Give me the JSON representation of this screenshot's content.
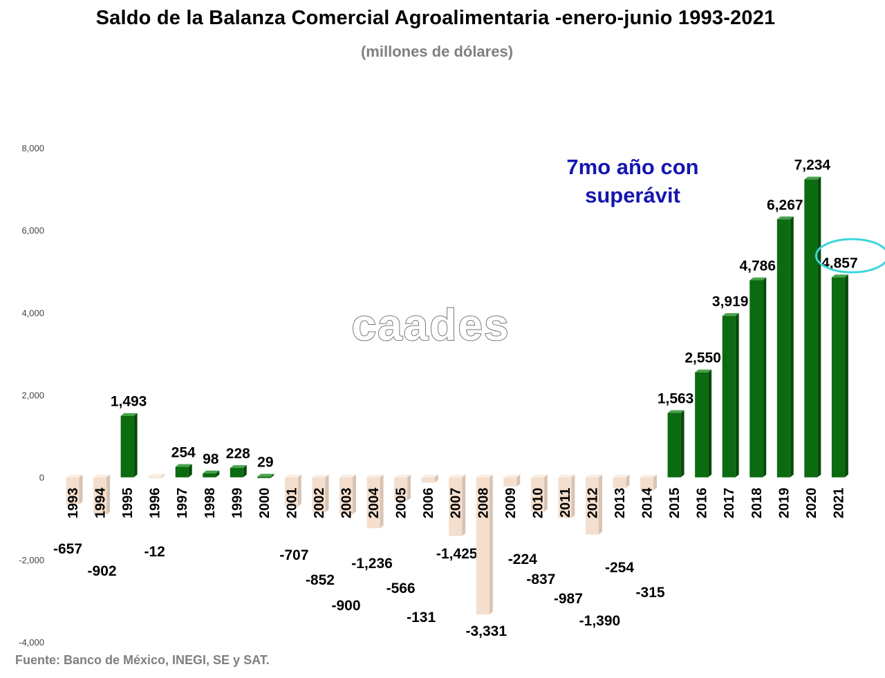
{
  "title": "Saldo de la Balanza Comercial Agroalimentaria -enero-junio 1993-2021",
  "subtitle": "(millones de dólares)",
  "source": "Fuente: Banco de México, INEGI, SE y SAT.",
  "watermark": "caades",
  "annotation": [
    "7mo año con",
    "superávit"
  ],
  "colors": {
    "positive": "#0b6b10",
    "negative": "#f4dfce",
    "annotation": "#1515b0",
    "highlight": "#3dd6dc"
  },
  "chart_data": {
    "type": "bar",
    "categories": [
      "1993",
      "1994",
      "1995",
      "1996",
      "1997",
      "1998",
      "1999",
      "2000",
      "2001",
      "2002",
      "2003",
      "2004",
      "2005",
      "2006",
      "2007",
      "2008",
      "2009",
      "2010",
      "2011",
      "2012",
      "2013",
      "2014",
      "2015",
      "2016",
      "2017",
      "2018",
      "2019",
      "2020",
      "2021"
    ],
    "values": [
      -657,
      -902,
      1493,
      -12,
      254,
      98,
      228,
      29,
      -707,
      -852,
      -900,
      -1236,
      -566,
      -131,
      -1425,
      -3331,
      -224,
      -837,
      -987,
      -1390,
      -254,
      -315,
      1563,
      2550,
      3919,
      4786,
      6267,
      7234,
      4857
    ],
    "data_labels": [
      "-657",
      "-902",
      "1,493",
      "-12",
      "254",
      "98",
      "228",
      "29",
      "-707",
      "-852",
      "-900",
      "-1,236",
      "-566",
      "-131",
      "-1,425",
      "-3,331",
      "-224",
      "-837",
      "-987",
      "-1,390",
      "-254",
      "-315",
      "1,563",
      "2,550",
      "3,919",
      "4,786",
      "6,267",
      "7,234",
      "4,857"
    ],
    "ylim": [
      -4000,
      8000
    ],
    "yticks": [
      -4000,
      -2000,
      0,
      2000,
      4000,
      6000,
      8000
    ],
    "ytick_labels": [
      "-4,000",
      "-2,000",
      "0",
      "2,000",
      "4,000",
      "6,000",
      "8,000"
    ],
    "highlighted_category": "2021"
  }
}
